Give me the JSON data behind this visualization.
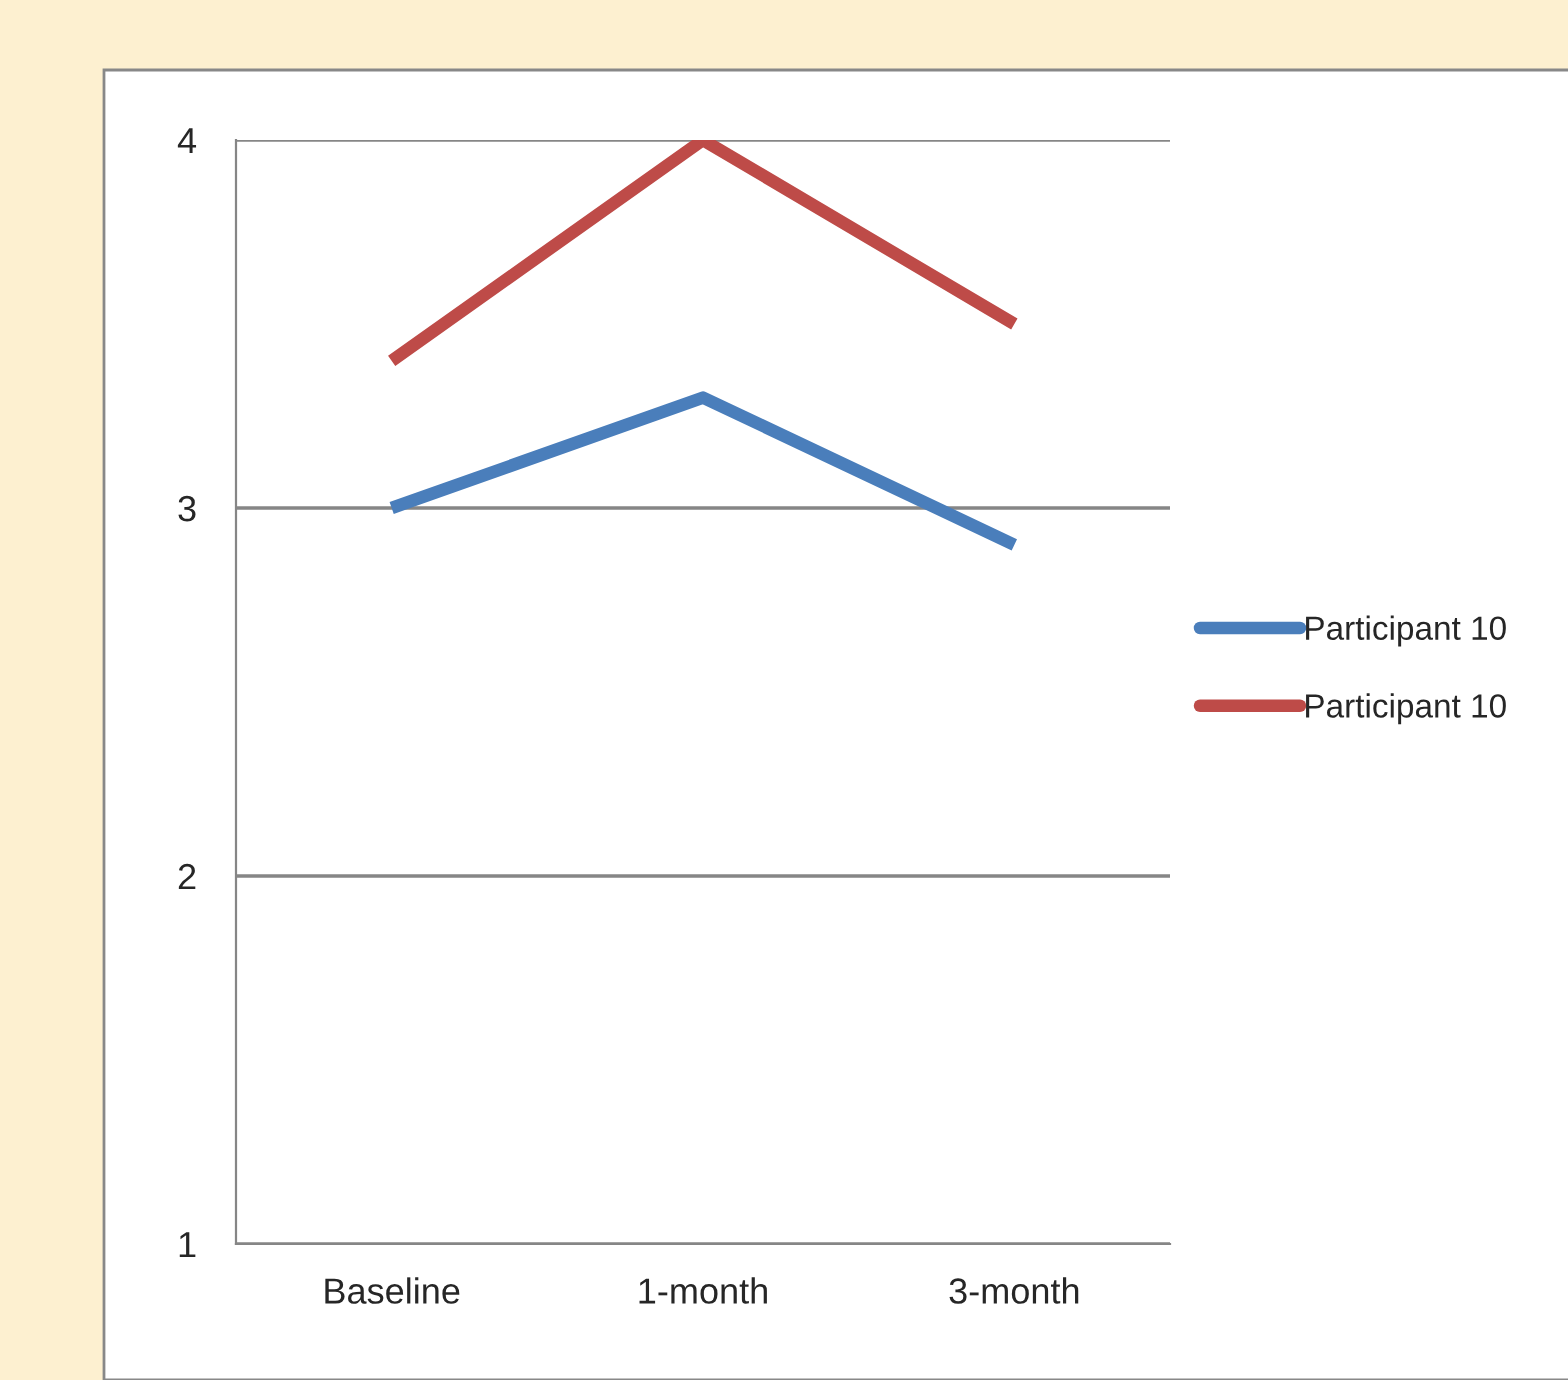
{
  "chart_data": {
    "type": "line",
    "categories": [
      "Baseline",
      "1-month",
      "3-month"
    ],
    "series": [
      {
        "name": "Participant 10",
        "color": "#4a7ebb",
        "values": [
          3.0,
          3.3,
          2.9
        ]
      },
      {
        "name": "Participant 10",
        "color": "#be4b48",
        "values": [
          3.4,
          4.0,
          3.5
        ]
      }
    ],
    "ylim": [
      1,
      4
    ],
    "yticks": [
      1,
      2,
      3,
      4
    ],
    "grid": "y",
    "legend": "right",
    "marker": "none",
    "line_style": "solid"
  }
}
